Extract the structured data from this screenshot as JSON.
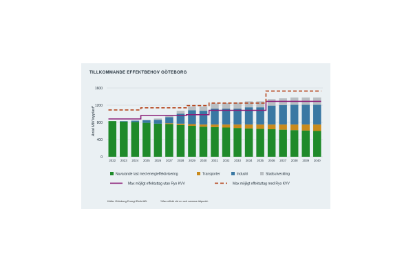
{
  "colors": {
    "background": "#eaf0f3",
    "nuvarande": "#1f8a2a",
    "transporter": "#c98a1c",
    "industri": "#3a78a3",
    "stadsutveckling": "#b9bec2",
    "utan_kvv": "#8a1e78",
    "med_kvv": "#b5441b"
  },
  "chart_data": {
    "type": "bar",
    "stacked": true,
    "title": "TILLKOMMANDE EFFEKTBEHOV GÖTEBORG",
    "xlabel": "",
    "ylabel": "Antal MW topplast*",
    "ylim": [
      0,
      1600
    ],
    "yticks": [
      "0",
      "400",
      "800",
      "1200",
      "1600"
    ],
    "categories": [
      "2022",
      "2023",
      "2024",
      "2025",
      "2026",
      "2027",
      "2028",
      "2029",
      "2030",
      "2031",
      "2032",
      "2033",
      "2034",
      "2035",
      "2036",
      "2037",
      "2038",
      "2039",
      "2040"
    ],
    "series": [
      {
        "name": "Nuvarande last med energieffektivisering",
        "kind": "bar",
        "values": [
          830,
          820,
          810,
          790,
          770,
          760,
          740,
          720,
          700,
          690,
          680,
          670,
          660,
          650,
          640,
          630,
          620,
          610,
          600
        ]
      },
      {
        "name": "Transporter",
        "kind": "bar",
        "values": [
          0,
          0,
          0,
          0,
          0,
          20,
          30,
          40,
          50,
          60,
          70,
          80,
          90,
          100,
          110,
          120,
          130,
          140,
          150
        ]
      },
      {
        "name": "Industri",
        "kind": "bar",
        "values": [
          0,
          10,
          30,
          60,
          90,
          140,
          230,
          320,
          320,
          370,
          370,
          370,
          400,
          400,
          440,
          450,
          460,
          460,
          460
        ]
      },
      {
        "name": "Stadsutveckling",
        "kind": "bar",
        "values": [
          0,
          0,
          0,
          10,
          30,
          50,
          70,
          90,
          100,
          120,
          130,
          140,
          140,
          140,
          150,
          160,
          170,
          170,
          170
        ]
      },
      {
        "name": "Max möjligt effektuttag utan Ryo KVV",
        "kind": "line",
        "values": [
          880,
          880,
          880,
          960,
          960,
          960,
          960,
          980,
          980,
          1080,
          1080,
          1080,
          1080,
          1080,
          1290,
          1290,
          1290,
          1290,
          1290
        ]
      },
      {
        "name": "Max möjligt effektuttag med Ryo KVV",
        "kind": "line",
        "values": [
          1090,
          1090,
          1090,
          1140,
          1140,
          1140,
          1140,
          1190,
          1190,
          1250,
          1250,
          1250,
          1250,
          1250,
          1530,
          1530,
          1530,
          1530,
          1530
        ]
      }
    ]
  },
  "footer": {
    "source": "Källa: Göteborg Energi Elnät AB.",
    "note": "*Max effekt vid en och samma tidpunkt."
  }
}
